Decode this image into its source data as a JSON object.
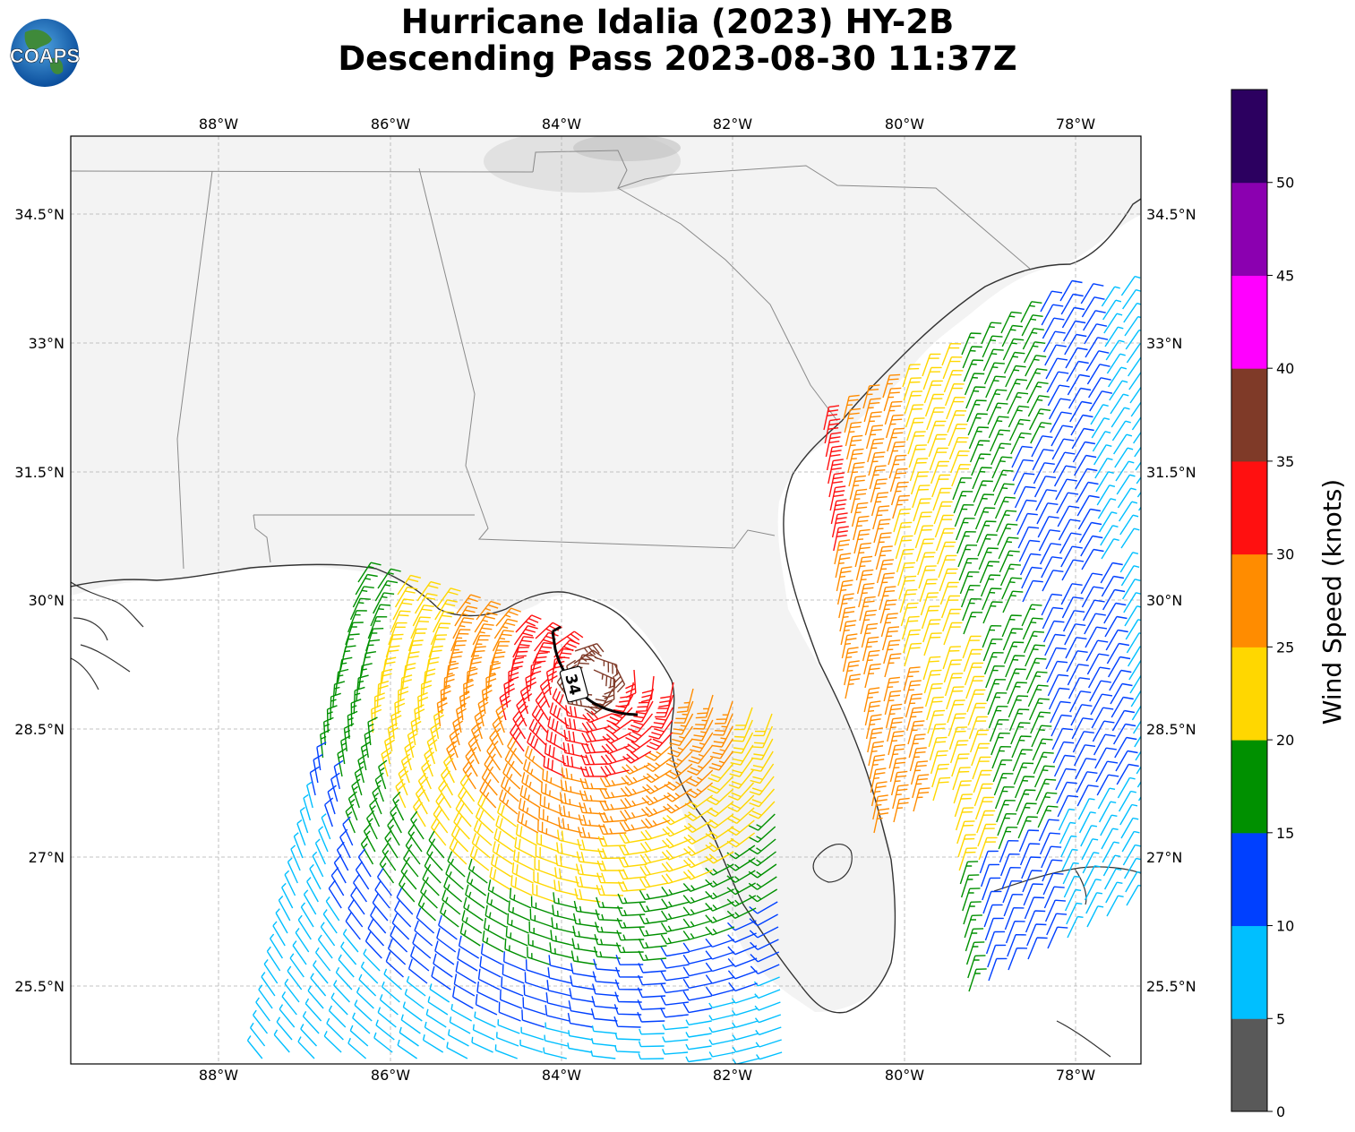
{
  "title": {
    "line1": "Hurricane Idalia (2023) HY-2B",
    "line2": "Descending Pass 2023-08-30 11:37Z"
  },
  "logo": {
    "text": "COAPS"
  },
  "axes": {
    "lon_ticks": [
      "88°W",
      "86°W",
      "84°W",
      "82°W",
      "80°W",
      "78°W"
    ],
    "lat_ticks": [
      "34.5°N",
      "33°N",
      "31.5°N",
      "30°N",
      "28.5°N",
      "27°N",
      "25.5°N"
    ]
  },
  "contour_label": "34",
  "colorbar": {
    "title": "Wind Speed (knots)",
    "ticks": [
      "0",
      "5",
      "10",
      "15",
      "20",
      "25",
      "30",
      "35",
      "40",
      "45",
      "50"
    ],
    "colors": [
      "#595959",
      "#00bfff",
      "#0040ff",
      "#009000",
      "#ffd700",
      "#ff8c00",
      "#ff1010",
      "#7f3a28",
      "#ff00ff",
      "#8b00b0",
      "#2c0060"
    ]
  },
  "chart_data": {
    "type": "wind-barb map",
    "lon_range": [
      -89.7,
      -77.2
    ],
    "lat_range": [
      24.2,
      35.2
    ],
    "colorbar_range": [
      0,
      55
    ],
    "gridlines": true,
    "colorbar_placement": "right"
  }
}
